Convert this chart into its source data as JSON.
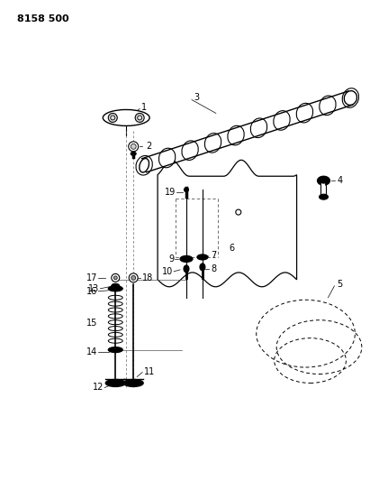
{
  "title": "8158 500",
  "background_color": "#ffffff",
  "line_color": "#000000",
  "fig_width": 4.11,
  "fig_height": 5.33,
  "dpi": 100
}
